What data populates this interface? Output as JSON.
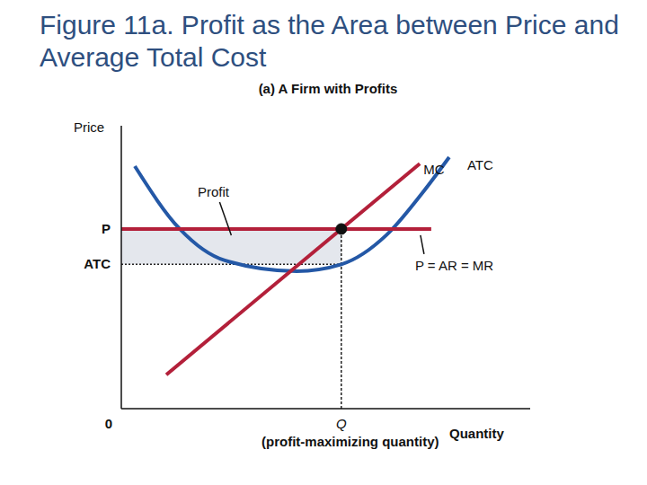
{
  "chart_data": {
    "type": "line",
    "title": "Figure 11a. Profit as the Area between Price and Average Total Cost",
    "subtitle": "(a) A Firm with Profits",
    "x_label": "Quantity",
    "y_label": "Price",
    "xlim": [
      0,
      10
    ],
    "ylim": [
      0,
      10
    ],
    "xticks": [
      0,
      {
        "value": 5.38,
        "label": "Q"
      }
    ],
    "yticks": [
      {
        "value": 5.1,
        "label": "ATC"
      },
      {
        "value": 6.35,
        "label": "P"
      }
    ],
    "grid": false,
    "series": [
      {
        "name": "ATC",
        "color": "#2458a6",
        "x": [
          0.33,
          1.43,
          2.53,
          4.29,
          5.38,
          6.48,
          7.36,
          8.02
        ],
        "values": [
          8.57,
          6.35,
          5.24,
          4.86,
          5.1,
          6.13,
          7.62,
          8.89
        ]
      },
      {
        "name": "MC",
        "color": "#b3203a",
        "x": [
          1.1,
          7.3
        ],
        "values": [
          1.2,
          8.66
        ]
      },
      {
        "name": "P = AR = MR",
        "color": "#b3203a",
        "x": [
          0,
          7.58
        ],
        "values": [
          6.35,
          6.35
        ]
      }
    ],
    "profit_area": {
      "label": "Profit",
      "quantity": 5.38,
      "price": 6.35,
      "atc": 5.1,
      "quantity_note": "(profit-maximizing quantity)",
      "color": "#e4e7ed"
    }
  }
}
